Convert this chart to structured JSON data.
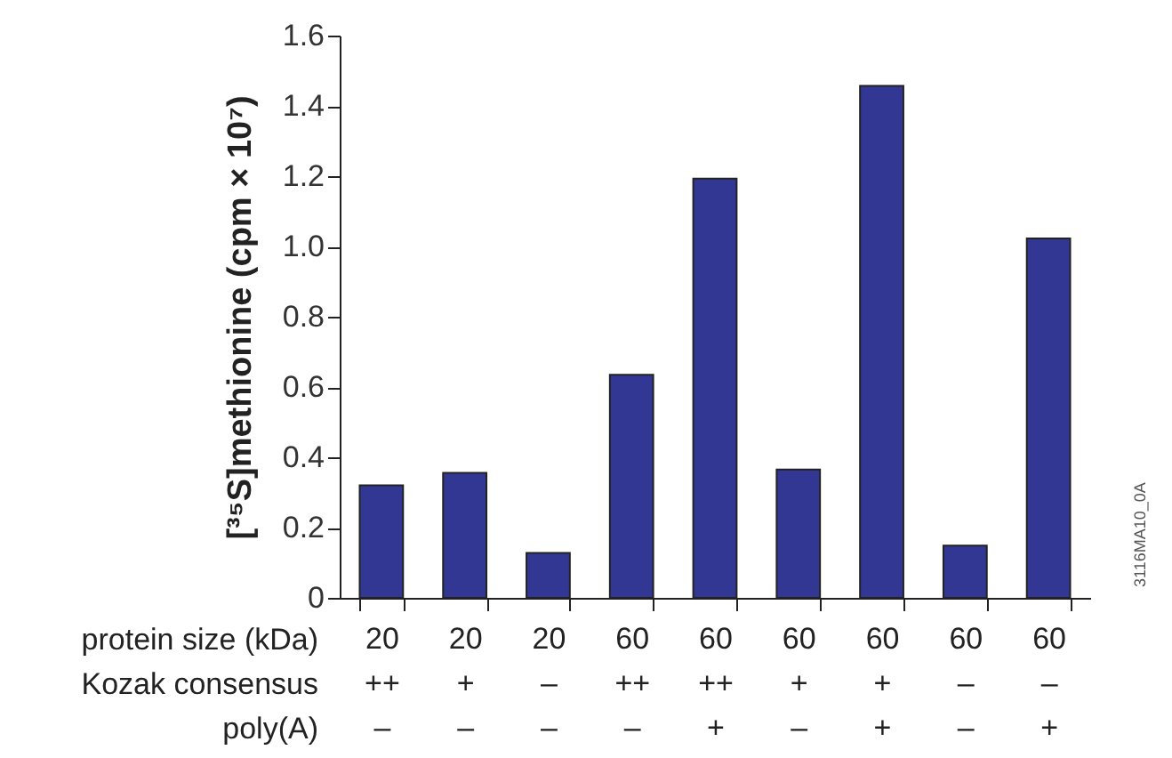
{
  "chart_data": {
    "type": "bar",
    "ylabel": "[³⁵S]methionine (cpm × 10⁷)",
    "categories": [
      "20\n++\n–",
      "20\n+\n–",
      "20\n–\n–",
      "60\n++\n–",
      "60\n++\n+",
      "60\n+\n–",
      "60\n+\n+",
      "60\n–\n–",
      "60\n–\n+"
    ],
    "values": [
      0.32,
      0.356,
      0.128,
      0.635,
      1.193,
      0.365,
      1.457,
      0.149,
      1.023
    ],
    "color": "#333794",
    "ylim": [
      0,
      1.6
    ],
    "yticks": [
      0,
      0.2,
      0.4,
      0.6,
      0.8,
      {
        "value": 1,
        "label": "1.0"
      },
      1.2,
      1.4,
      1.6
    ],
    "grid": false,
    "annotations": [
      "protein size (kDa)",
      "Kozak consensus",
      "poly(A)",
      "3116MA10_0A"
    ]
  }
}
